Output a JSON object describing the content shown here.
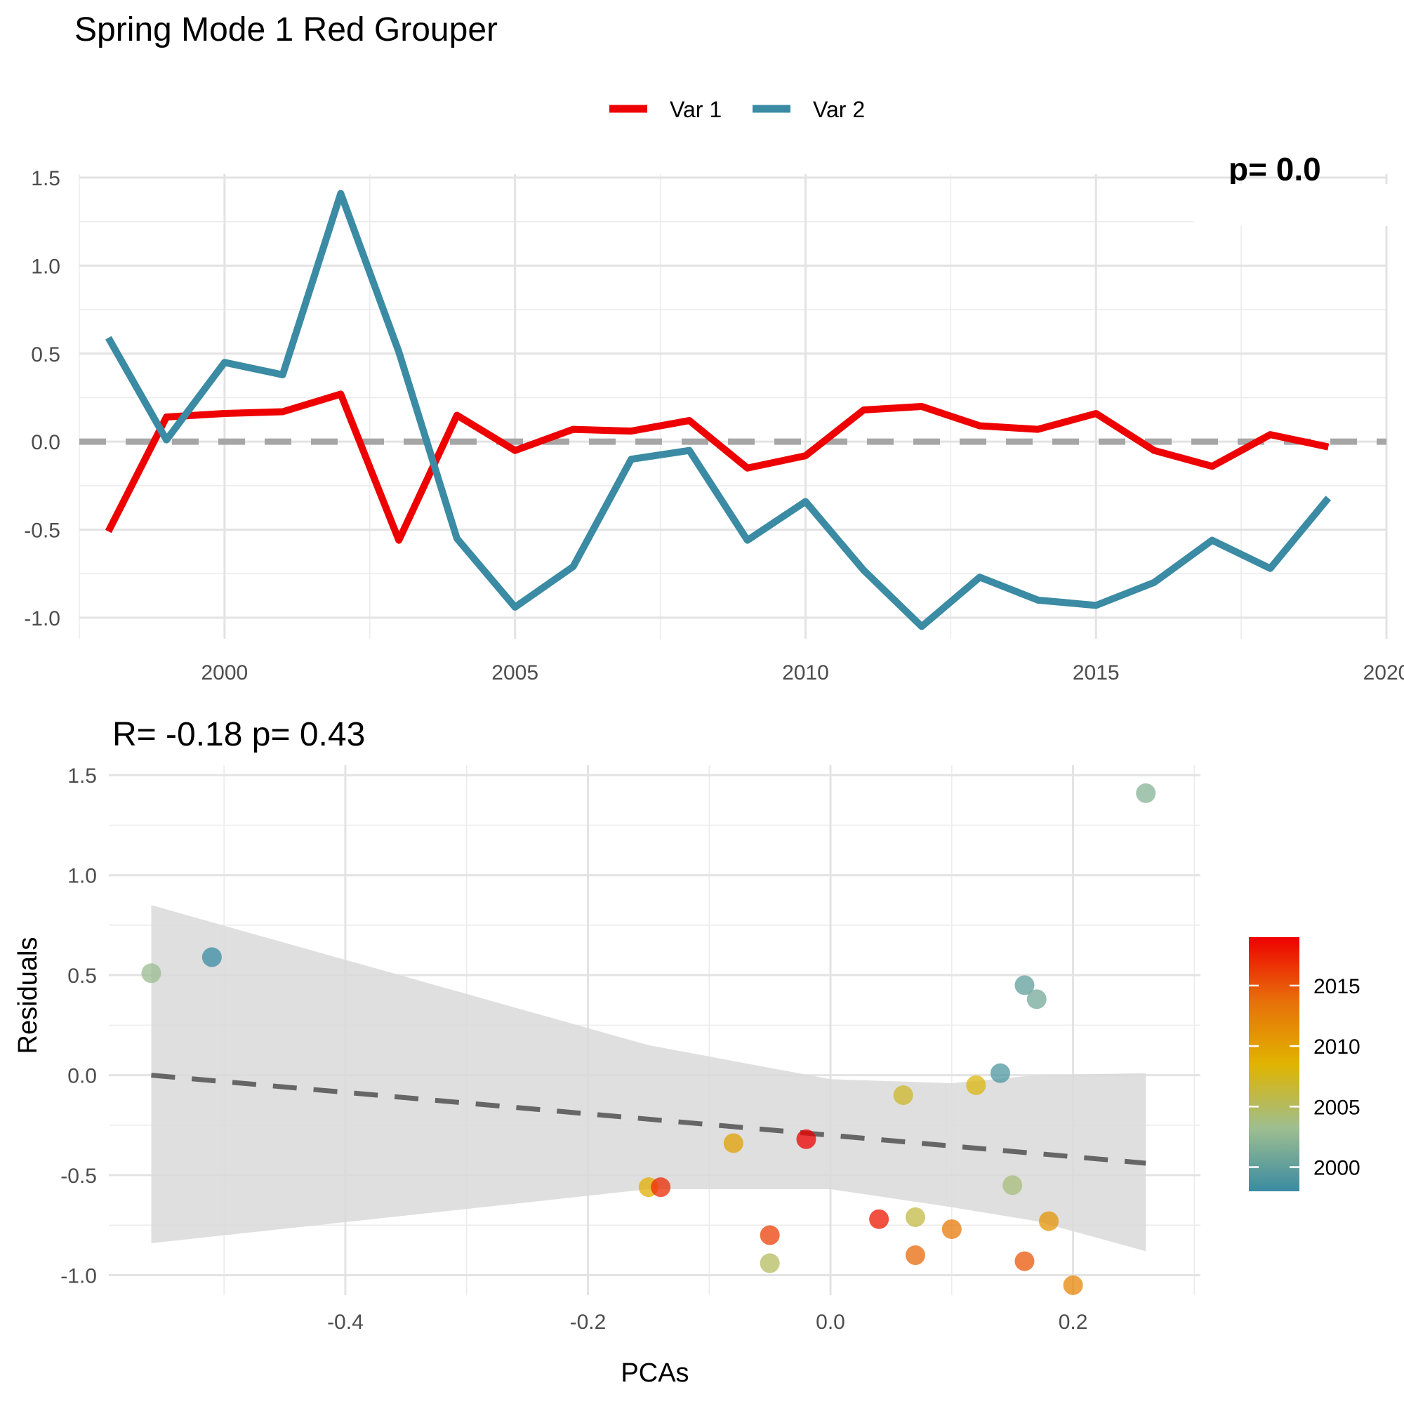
{
  "title": "Spring Mode 1 Red Grouper",
  "chart_data": [
    {
      "type": "line",
      "legend_position": "top",
      "grid": true,
      "partial_annotation": "p= 0.0",
      "x": [
        1998,
        1999,
        2000,
        2001,
        2002,
        2003,
        2004,
        2005,
        2006,
        2007,
        2008,
        2009,
        2010,
        2011,
        2012,
        2013,
        2014,
        2015,
        2016,
        2017,
        2018,
        2019
      ],
      "xlim": [
        1997.5,
        2020
      ],
      "ylim": [
        -1.12,
        1.52
      ],
      "x_ticks": [
        2000,
        2005,
        2010,
        2015,
        2020
      ],
      "x_tick_labels": [
        "2000",
        "2005",
        "2010",
        "2015",
        "2020"
      ],
      "y_ticks": [
        1.5,
        1.0,
        0.5,
        0.0,
        -0.5,
        -1.0
      ],
      "y_tick_labels": [
        "1.5",
        "1.0",
        "0.5",
        "0.0",
        "-0.5",
        "-1.0"
      ],
      "reference_line": {
        "y": 0,
        "style": "dashed",
        "color": "#a6a6a6"
      },
      "series": [
        {
          "name": "Var 1",
          "color": "#ee0000",
          "values": [
            -0.51,
            0.14,
            0.16,
            0.17,
            0.27,
            -0.56,
            0.15,
            -0.05,
            0.07,
            0.06,
            0.12,
            -0.15,
            -0.08,
            0.18,
            0.2,
            0.09,
            0.07,
            0.16,
            -0.05,
            -0.14,
            0.04,
            -0.03
          ]
        },
        {
          "name": "Var 2",
          "color": "#3a8ba3",
          "values": [
            0.59,
            0.01,
            0.45,
            0.38,
            1.41,
            0.51,
            -0.55,
            -0.94,
            -0.71,
            -0.1,
            -0.05,
            -0.56,
            -0.34,
            -0.73,
            -1.05,
            -0.77,
            -0.9,
            -0.93,
            -0.8,
            -0.56,
            -0.72,
            -0.32
          ]
        }
      ]
    },
    {
      "type": "scatter",
      "title": "R= -0.18  p= 0.43",
      "xlabel": "PCAs",
      "ylabel": "Residuals",
      "grid": true,
      "xlim": [
        -0.595,
        0.305
      ],
      "ylim": [
        -1.1,
        1.55
      ],
      "x_ticks": [
        -0.4,
        -0.2,
        0.0,
        0.2
      ],
      "x_tick_labels": [
        "-0.4",
        "-0.2",
        "0.0",
        "0.2"
      ],
      "y_ticks": [
        1.5,
        1.0,
        0.5,
        0.0,
        -0.5,
        -1.0
      ],
      "y_tick_labels": [
        "1.5",
        "1.0",
        "0.5",
        "0.0",
        "-0.5",
        "-1.0"
      ],
      "regression": {
        "x0": -0.56,
        "y0": 0.0,
        "x1": 0.26,
        "y1": -0.44,
        "style": "dashed",
        "color": "#666666"
      },
      "confidence_band": {
        "x": [
          -0.56,
          -0.15,
          0.0,
          0.1,
          0.17,
          0.26
        ],
        "upper": [
          0.85,
          0.15,
          -0.02,
          -0.04,
          0.0,
          0.01
        ],
        "lower": [
          -0.84,
          -0.57,
          -0.57,
          -0.66,
          -0.73,
          -0.88
        ],
        "color": "#d9d9d9"
      },
      "colorbar": {
        "label_values": [
          2015,
          2010,
          2005,
          2000
        ],
        "tick_labels": [
          "2015",
          "2010",
          "2005",
          "2000"
        ],
        "min": 1998,
        "max": 2019,
        "colors": [
          "#3a8ba3",
          "#9ebe8f",
          "#e0b400",
          "#e86f0a",
          "#ee0000"
        ]
      },
      "points": [
        {
          "x": -0.51,
          "y": 0.59,
          "year": 1998
        },
        {
          "x": 0.14,
          "y": 0.01,
          "year": 1999
        },
        {
          "x": 0.16,
          "y": 0.45,
          "year": 2000
        },
        {
          "x": 0.17,
          "y": 0.38,
          "year": 2001
        },
        {
          "x": 0.26,
          "y": 1.41,
          "year": 2002
        },
        {
          "x": -0.56,
          "y": 0.51,
          "year": 2003
        },
        {
          "x": 0.15,
          "y": -0.55,
          "year": 2004
        },
        {
          "x": -0.05,
          "y": -0.94,
          "year": 2005
        },
        {
          "x": 0.07,
          "y": -0.71,
          "year": 2006
        },
        {
          "x": 0.06,
          "y": -0.1,
          "year": 2007
        },
        {
          "x": 0.12,
          "y": -0.05,
          "year": 2008
        },
        {
          "x": -0.15,
          "y": -0.56,
          "year": 2009
        },
        {
          "x": -0.08,
          "y": -0.34,
          "year": 2010
        },
        {
          "x": 0.18,
          "y": -0.73,
          "year": 2011
        },
        {
          "x": 0.2,
          "y": -1.05,
          "year": 2012
        },
        {
          "x": 0.1,
          "y": -0.77,
          "year": 2013
        },
        {
          "x": 0.07,
          "y": -0.9,
          "year": 2014
        },
        {
          "x": 0.16,
          "y": -0.93,
          "year": 2015
        },
        {
          "x": -0.05,
          "y": -0.8,
          "year": 2016
        },
        {
          "x": -0.14,
          "y": -0.56,
          "year": 2017
        },
        {
          "x": 0.04,
          "y": -0.72,
          "year": 2018
        },
        {
          "x": -0.02,
          "y": -0.32,
          "year": 2019
        }
      ]
    }
  ]
}
